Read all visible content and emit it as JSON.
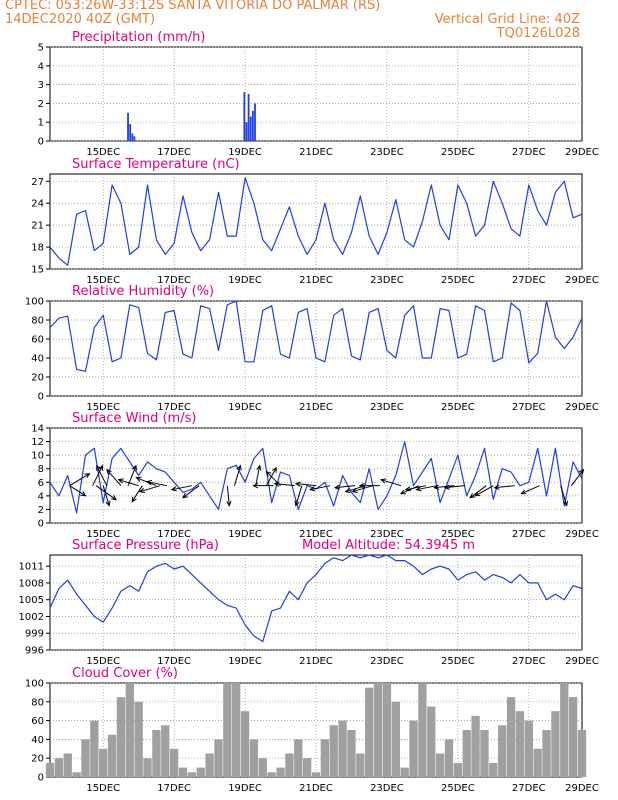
{
  "header": {
    "line1_left": "CPTEC:   053:26W-33:12S   SANTA VITORIA DO PALMAR (RS)",
    "line2_left": "14DEC2020 40Z (GMT)",
    "line2_right": "Vertical Grid Line: 40Z",
    "line3_right": "TQ0126L028"
  },
  "colors": {
    "header": "#e8803a",
    "title": "#e0007e",
    "line": "#1f3fe0",
    "cloud": "#a0a0a0",
    "wind_arrow": "#000000"
  },
  "chart_data": [
    {
      "type": "bar",
      "title": "Precipitation (mm/h)",
      "ylim": [
        0,
        5
      ],
      "yticks": [
        "0",
        "1",
        "2",
        "3",
        "4",
        "5"
      ],
      "xticks": [
        "15DEC",
        "17DEC",
        "19DEC",
        "21DEC",
        "23DEC",
        "25DEC",
        "27DEC",
        "29DEC"
      ],
      "x": [
        2.2,
        2.26,
        2.32,
        2.38,
        5.48,
        5.54,
        5.6,
        5.66,
        5.72,
        5.78
      ],
      "values": [
        1.5,
        0.9,
        0.4,
        0.25,
        2.6,
        1.0,
        2.5,
        1.3,
        1.6,
        2.0
      ]
    },
    {
      "type": "line",
      "title": "Surface Temperature (nC)",
      "ylim": [
        15,
        28
      ],
      "yticks": [
        "15",
        "18",
        "21",
        "24",
        "27"
      ],
      "xticks": [
        "15DEC",
        "17DEC",
        "19DEC",
        "21DEC",
        "23DEC",
        "25DEC",
        "27DEC",
        "29DEC"
      ],
      "x": [
        0.0,
        0.25,
        0.5,
        0.75,
        1.0,
        1.25,
        1.5,
        1.75,
        2.0,
        2.25,
        2.5,
        2.75,
        3.0,
        3.25,
        3.5,
        3.75,
        4.0,
        4.25,
        4.5,
        4.75,
        5.0,
        5.25,
        5.5,
        5.75,
        6.0,
        6.25,
        6.5,
        6.75,
        7.0,
        7.25,
        7.5,
        7.75,
        8.0,
        8.25,
        8.5,
        8.75,
        9.0,
        9.25,
        9.5,
        9.75,
        10.0,
        10.25,
        10.5,
        10.75,
        11.0,
        11.25,
        11.5,
        11.75,
        12.0,
        12.25,
        12.5,
        12.75,
        13.0,
        13.25,
        13.5,
        13.75,
        14.0,
        14.25,
        14.5,
        14.75,
        15.0
      ],
      "values": [
        18,
        16.5,
        15.5,
        22.5,
        23,
        17.5,
        18.5,
        26.5,
        24,
        17,
        18,
        26.5,
        19,
        17,
        18.5,
        25,
        20,
        17.5,
        19,
        25.5,
        19.5,
        19.5,
        27.5,
        24,
        19,
        17.5,
        20.5,
        23.5,
        19.5,
        17,
        19,
        24,
        19,
        17,
        20,
        25,
        19.5,
        17,
        20,
        24.5,
        19,
        18,
        21.5,
        26.5,
        21,
        19,
        26.5,
        24,
        19.5,
        21,
        27,
        24,
        20.5,
        19.5,
        26.5,
        23,
        21,
        25.5,
        27,
        22,
        22.5
      ]
    },
    {
      "type": "line",
      "title": "Relative Humidity (%)",
      "ylim": [
        0,
        100
      ],
      "yticks": [
        "0",
        "20",
        "40",
        "60",
        "80",
        "100"
      ],
      "xticks": [
        "15DEC",
        "17DEC",
        "19DEC",
        "21DEC",
        "23DEC",
        "25DEC",
        "27DEC",
        "29DEC"
      ],
      "x": [
        0.0,
        0.25,
        0.5,
        0.75,
        1.0,
        1.25,
        1.5,
        1.75,
        2.0,
        2.25,
        2.5,
        2.75,
        3.0,
        3.25,
        3.5,
        3.75,
        4.0,
        4.25,
        4.5,
        4.75,
        5.0,
        5.25,
        5.5,
        5.75,
        6.0,
        6.25,
        6.5,
        6.75,
        7.0,
        7.25,
        7.5,
        7.75,
        8.0,
        8.25,
        8.5,
        8.75,
        9.0,
        9.25,
        9.5,
        9.75,
        10.0,
        10.25,
        10.5,
        10.75,
        11.0,
        11.25,
        11.5,
        11.75,
        12.0,
        12.25,
        12.5,
        12.75,
        13.0,
        13.25,
        13.5,
        13.75,
        14.0,
        14.25,
        14.5,
        14.75,
        15.0
      ],
      "values": [
        72,
        82,
        84,
        28,
        26,
        72,
        85,
        36,
        40,
        96,
        93,
        45,
        38,
        88,
        90,
        44,
        40,
        95,
        92,
        48,
        96,
        100,
        36,
        36,
        90,
        95,
        44,
        40,
        88,
        92,
        40,
        36,
        85,
        92,
        42,
        38,
        88,
        92,
        48,
        40,
        85,
        95,
        40,
        40,
        92,
        90,
        40,
        44,
        95,
        90,
        36,
        40,
        98,
        90,
        35,
        45,
        100,
        62,
        50,
        62,
        82
      ]
    },
    {
      "type": "line",
      "title": "Surface Wind (m/s)",
      "ylim": [
        0,
        14
      ],
      "yticks": [
        "0",
        "2",
        "4",
        "6",
        "8",
        "10",
        "12",
        "14"
      ],
      "xticks": [
        "15DEC",
        "17DEC",
        "19DEC",
        "21DEC",
        "23DEC",
        "25DEC",
        "27DEC",
        "29DEC"
      ],
      "x": [
        0.0,
        0.25,
        0.5,
        0.75,
        1.0,
        1.25,
        1.5,
        1.75,
        2.0,
        2.25,
        2.5,
        2.75,
        3.0,
        3.25,
        3.5,
        3.75,
        4.0,
        4.25,
        4.5,
        4.75,
        5.0,
        5.25,
        5.5,
        5.75,
        6.0,
        6.25,
        6.5,
        6.75,
        7.0,
        7.25,
        7.5,
        7.75,
        8.0,
        8.25,
        8.5,
        8.75,
        9.0,
        9.25,
        9.5,
        9.75,
        10.0,
        10.25,
        10.5,
        10.75,
        11.0,
        11.25,
        11.5,
        11.75,
        12.0,
        12.25,
        12.5,
        12.75,
        13.0,
        13.25,
        13.5,
        13.75,
        14.0,
        14.25,
        14.5,
        14.75,
        15.0
      ],
      "values": [
        6,
        4,
        7,
        1.5,
        10,
        11,
        3,
        9.5,
        11,
        9,
        7,
        9,
        8,
        7.5,
        6,
        4.5,
        5,
        6,
        4,
        2,
        8,
        8.5,
        6,
        9.5,
        11,
        3,
        7.5,
        7,
        2,
        5.5,
        5,
        6,
        2.5,
        7,
        4.5,
        3,
        8,
        2,
        4,
        7,
        12,
        5.5,
        7.5,
        9.5,
        3,
        6.5,
        10,
        4,
        7,
        11,
        3.5,
        8,
        7.5,
        5.5,
        6,
        11,
        4,
        11,
        2.5,
        9,
        6.5
      ],
      "arrows": [
        {
          "x": 0.55,
          "u": 1.0,
          "v": 0.6
        },
        {
          "x": 0.55,
          "u": 0.8,
          "v": -0.5
        },
        {
          "x": 1.2,
          "u": 0.5,
          "v": 1.0
        },
        {
          "x": 1.3,
          "u": 1.0,
          "v": -0.7
        },
        {
          "x": 1.5,
          "u": 0.3,
          "v": -1.0
        },
        {
          "x": 1.6,
          "u": -0.5,
          "v": 1.0
        },
        {
          "x": 2.0,
          "u": -0.7,
          "v": 0.8
        },
        {
          "x": 2.2,
          "u": 0.4,
          "v": 1.0
        },
        {
          "x": 2.5,
          "u": -1.0,
          "v": 0.3
        },
        {
          "x": 2.6,
          "u": -0.5,
          "v": -0.8
        },
        {
          "x": 3.0,
          "u": -1.0,
          "v": 0.4
        },
        {
          "x": 3.1,
          "u": -1.0,
          "v": -0.3
        },
        {
          "x": 3.3,
          "u": -1.0,
          "v": 0.2
        },
        {
          "x": 4.0,
          "u": -1.0,
          "v": -0.2
        },
        {
          "x": 4.2,
          "u": -0.8,
          "v": -0.6
        },
        {
          "x": 5.0,
          "u": 0.1,
          "v": -1.0
        },
        {
          "x": 5.2,
          "u": 0.3,
          "v": 1.0
        },
        {
          "x": 5.8,
          "u": 0.2,
          "v": 1.0
        },
        {
          "x": 6.1,
          "u": 0.5,
          "v": 0.9
        },
        {
          "x": 6.3,
          "u": -1.0,
          "v": 0.0
        },
        {
          "x": 6.5,
          "u": -0.7,
          "v": 0.7
        },
        {
          "x": 6.9,
          "u": -1.0,
          "v": 0.1
        },
        {
          "x": 7.1,
          "u": -0.3,
          "v": -1.0
        },
        {
          "x": 7.5,
          "u": -1.0,
          "v": 0.1
        },
        {
          "x": 7.9,
          "u": -1.0,
          "v": -0.2
        },
        {
          "x": 8.6,
          "u": -1.0,
          "v": -0.1
        },
        {
          "x": 8.9,
          "u": -1.0,
          "v": -0.3
        },
        {
          "x": 9.1,
          "u": -1.0,
          "v": -0.3
        },
        {
          "x": 9.3,
          "u": -1.0,
          "v": 0.0
        },
        {
          "x": 9.9,
          "u": -1.0,
          "v": 0.3
        },
        {
          "x": 10.4,
          "u": -0.9,
          "v": -0.4
        },
        {
          "x": 10.6,
          "u": -1.0,
          "v": -0.2
        },
        {
          "x": 10.9,
          "u": -1.0,
          "v": -0.2
        },
        {
          "x": 11.4,
          "u": -1.0,
          "v": -0.1
        },
        {
          "x": 11.7,
          "u": -1.0,
          "v": -0.1
        },
        {
          "x": 12.3,
          "u": -0.8,
          "v": -0.6
        },
        {
          "x": 12.5,
          "u": -0.9,
          "v": -0.5
        },
        {
          "x": 13.1,
          "u": -1.0,
          "v": -0.1
        },
        {
          "x": 13.8,
          "u": -0.9,
          "v": -0.4
        },
        {
          "x": 14.4,
          "u": 0.3,
          "v": -1.0
        },
        {
          "x": 14.7,
          "u": 0.6,
          "v": 0.8
        }
      ]
    },
    {
      "type": "line",
      "title": "Surface Pressure (hPa)",
      "annotation": "Model Altitude: 54.3945 m",
      "ylim": [
        996,
        1013
      ],
      "yticks": [
        "996",
        "999",
        "1002",
        "1005",
        "1008",
        "1011"
      ],
      "xticks": [
        "15DEC",
        "17DEC",
        "19DEC",
        "21DEC",
        "23DEC",
        "25DEC",
        "27DEC",
        "29DEC"
      ],
      "x": [
        0.0,
        0.25,
        0.5,
        0.75,
        1.0,
        1.25,
        1.5,
        1.75,
        2.0,
        2.25,
        2.5,
        2.75,
        3.0,
        3.25,
        3.5,
        3.75,
        4.0,
        4.25,
        4.5,
        4.75,
        5.0,
        5.25,
        5.5,
        5.75,
        6.0,
        6.25,
        6.5,
        6.75,
        7.0,
        7.25,
        7.5,
        7.75,
        8.0,
        8.25,
        8.5,
        8.75,
        9.0,
        9.25,
        9.5,
        9.75,
        10.0,
        10.25,
        10.5,
        10.75,
        11.0,
        11.25,
        11.5,
        11.75,
        12.0,
        12.25,
        12.5,
        12.75,
        13.0,
        13.25,
        13.5,
        13.75,
        14.0,
        14.25,
        14.5,
        14.75,
        15.0
      ],
      "values": [
        1003.5,
        1007,
        1008.5,
        1006,
        1004,
        1002,
        1001,
        1003.5,
        1006.5,
        1007.5,
        1006.5,
        1010,
        1011,
        1011.5,
        1010.5,
        1011,
        1009.5,
        1008,
        1006.5,
        1005,
        1004,
        1003.5,
        1000.5,
        998.5,
        997.5,
        1003,
        1003.5,
        1006.5,
        1005,
        1008,
        1009.5,
        1011.5,
        1012.5,
        1012,
        1013,
        1012.5,
        1013,
        1012.5,
        1013,
        1012,
        1012,
        1011,
        1009.5,
        1010.5,
        1011,
        1010.5,
        1008.5,
        1009.5,
        1010,
        1008.5,
        1009.5,
        1009,
        1008,
        1009.5,
        1008,
        1008,
        1005,
        1006,
        1005,
        1007.5,
        1007
      ]
    },
    {
      "type": "bar",
      "title": "Cloud Cover (%)",
      "ylim": [
        0,
        100
      ],
      "yticks": [
        "0",
        "20",
        "40",
        "60",
        "80",
        "100"
      ],
      "xticks": [
        "15DEC",
        "17DEC",
        "19DEC",
        "21DEC",
        "23DEC",
        "25DEC",
        "27DEC",
        "29DEC"
      ],
      "x": [
        0.0,
        0.25,
        0.5,
        0.75,
        1.0,
        1.25,
        1.5,
        1.75,
        2.0,
        2.25,
        2.5,
        2.75,
        3.0,
        3.25,
        3.5,
        3.75,
        4.0,
        4.25,
        4.5,
        4.75,
        5.0,
        5.25,
        5.5,
        5.75,
        6.0,
        6.25,
        6.5,
        6.75,
        7.0,
        7.25,
        7.5,
        7.75,
        8.0,
        8.25,
        8.5,
        8.75,
        9.0,
        9.25,
        9.5,
        9.75,
        10.0,
        10.25,
        10.5,
        10.75,
        11.0,
        11.25,
        11.5,
        11.75,
        12.0,
        12.25,
        12.5,
        12.75,
        13.0,
        13.25,
        13.5,
        13.75,
        14.0,
        14.25,
        14.5,
        14.75,
        15.0
      ],
      "values": [
        15,
        20,
        25,
        5,
        40,
        60,
        30,
        45,
        85,
        100,
        80,
        20,
        50,
        55,
        30,
        10,
        5,
        10,
        25,
        40,
        100,
        100,
        70,
        40,
        20,
        5,
        10,
        25,
        40,
        20,
        5,
        40,
        55,
        60,
        50,
        25,
        95,
        100,
        100,
        80,
        10,
        60,
        100,
        75,
        25,
        40,
        15,
        50,
        65,
        50,
        15,
        55,
        85,
        70,
        60,
        30,
        50,
        70,
        100,
        85,
        50
      ]
    }
  ]
}
